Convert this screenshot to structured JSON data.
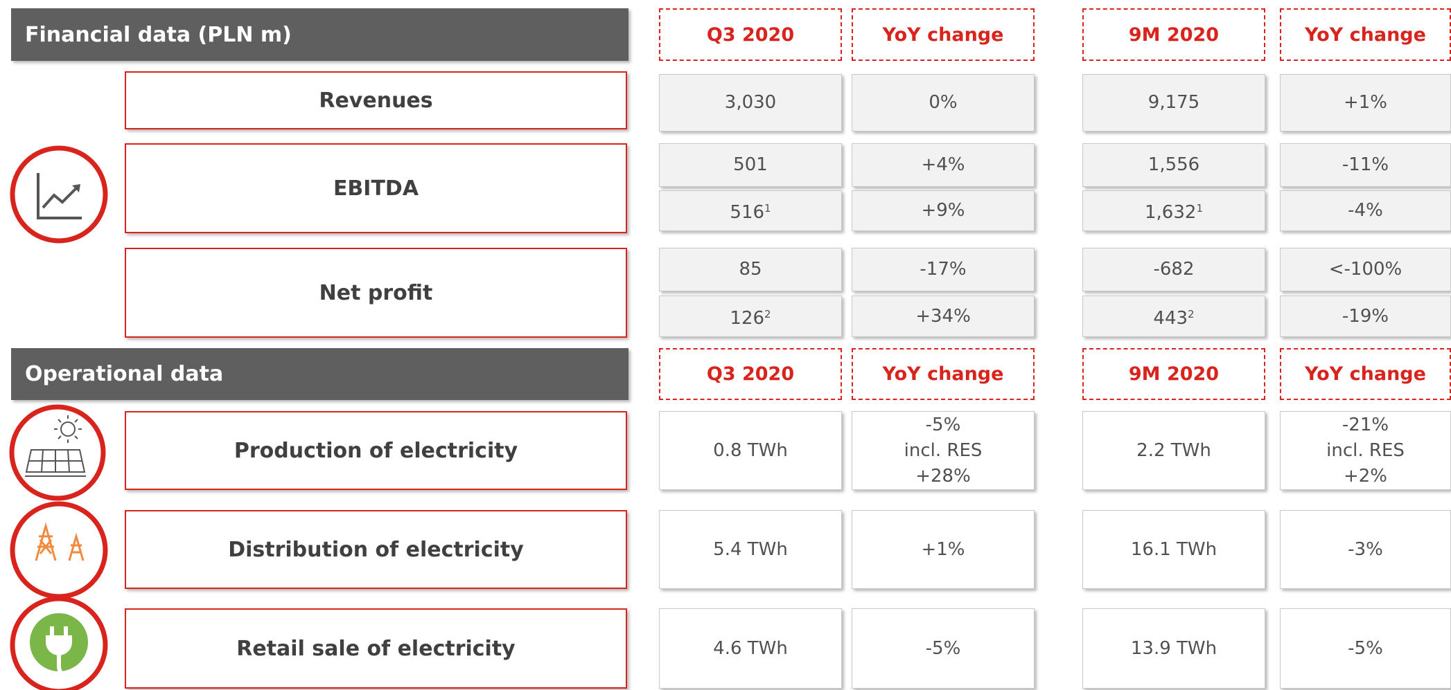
{
  "financial": {
    "title": "Financial data (PLN m)",
    "columns": [
      "Q3 2020",
      "YoY change",
      "9M 2020",
      "YoY change"
    ],
    "rows": [
      {
        "label": "Revenues",
        "lines": [
          [
            "3,030",
            "0%",
            "9,175",
            "+1%"
          ]
        ]
      },
      {
        "label": "EBITDA",
        "lines": [
          [
            "501",
            "+4%",
            "1,556",
            "-11%"
          ],
          [
            {
              "text": "516",
              "sup": "1"
            },
            "+9%",
            {
              "text": "1,632",
              "sup": "1"
            },
            "-4%"
          ]
        ]
      },
      {
        "label": "Net profit",
        "lines": [
          [
            "85",
            "-17%",
            "-682",
            "<-100%"
          ],
          [
            {
              "text": "126",
              "sup": "2"
            },
            "+34%",
            {
              "text": "443",
              "sup": "2"
            },
            "-19%"
          ]
        ]
      }
    ]
  },
  "operational": {
    "title": "Operational data",
    "columns": [
      "Q3 2020",
      "YoY change",
      "9M 2020",
      "YoY change"
    ],
    "rows": [
      {
        "label": "Production of electricity",
        "lines": [
          [
            "0.8 TWh",
            [
              "-5%",
              "incl. RES",
              "+28%"
            ],
            "2.2 TWh",
            [
              "-21%",
              "incl. RES",
              "+2%"
            ]
          ]
        ]
      },
      {
        "label": "Distribution of electricity",
        "lines": [
          [
            "5.4 TWh",
            "+1%",
            "16.1 TWh",
            "-3%"
          ]
        ]
      },
      {
        "label": "Retail sale of electricity",
        "lines": [
          [
            "4.6 TWh",
            "-5%",
            "13.9 TWh",
            "-5%"
          ]
        ]
      }
    ]
  }
}
